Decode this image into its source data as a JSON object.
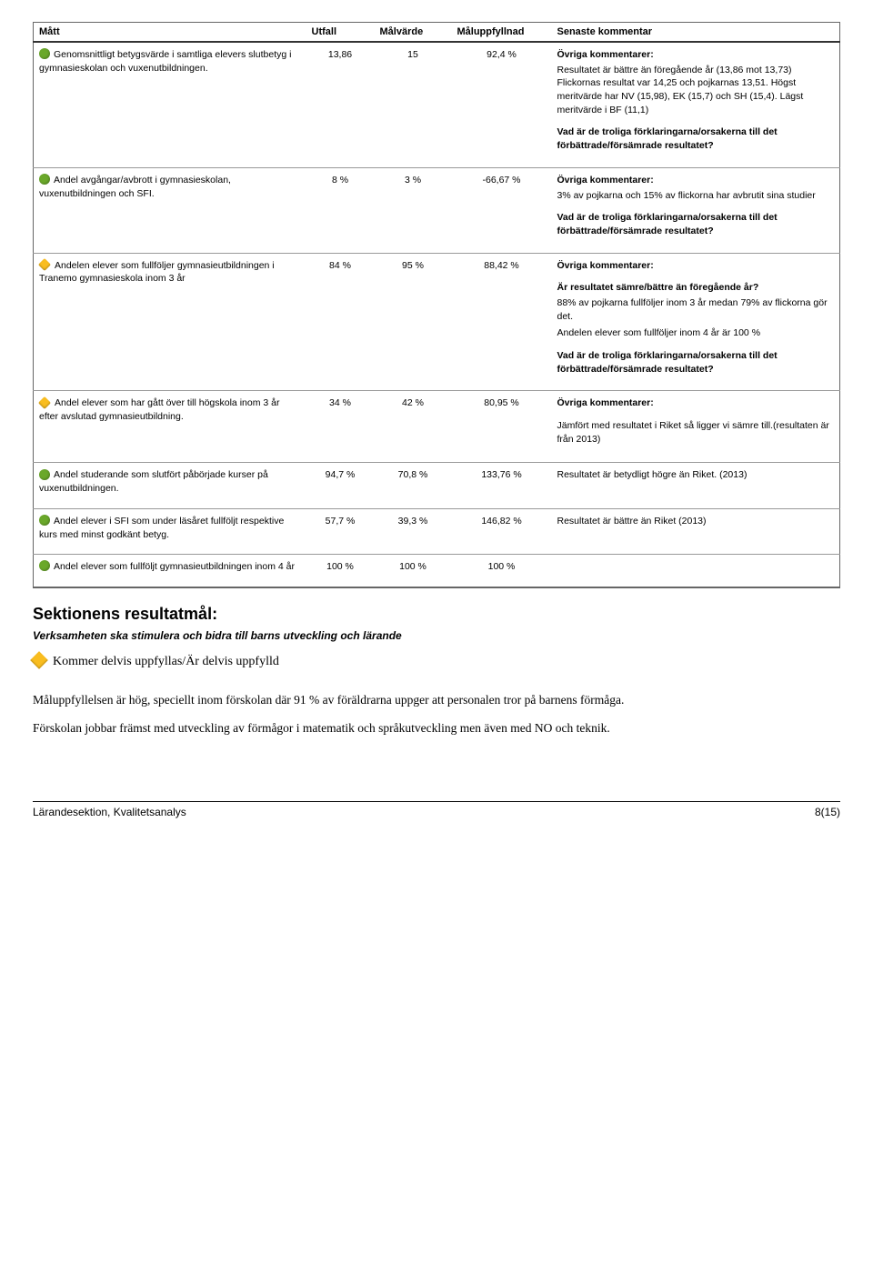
{
  "table": {
    "headers": [
      "Mått",
      "Utfall",
      "Målvärde",
      "Måluppfyllnad",
      "Senaste kommentar"
    ],
    "ovriga_label": "Övriga kommentarer:",
    "vad_label": "Vad är de troliga förklaringarna/orsakerna till det förbättrade/försämrade resultatet?",
    "ar_label": "Är resultatet sämre/bättre än föregående år?",
    "colors": {
      "green": "#6aa82a",
      "yellow": "#f9bd1f"
    },
    "rows": [
      {
        "indicator_color": "#6aa82a",
        "indicator_shape": "circle",
        "matt": "Genomsnittligt betygsvärde i samtliga elevers slutbetyg i gymnasieskolan och vuxenutbildningen.",
        "utfall": "13,86",
        "malvarde": "15",
        "maluppfyllnad": "92,4 %",
        "comment_blocks": [
          {
            "heading_key": "ovriga_label",
            "body": "Resultatet är bättre än föregående år (13,86 mot 13,73) Flickornas resultat var 14,25 och pojkarnas 13,51. Högst meritvärde har NV (15,98), EK (15,7) och SH (15,4). Lägst meritvärde i BF (11,1)"
          },
          {
            "heading_key": "vad_label",
            "body": ""
          }
        ]
      },
      {
        "indicator_color": "#6aa82a",
        "indicator_shape": "circle",
        "matt": "Andel avgångar/avbrott i gymnasieskolan, vuxenutbildningen och SFI.",
        "utfall": "8 %",
        "malvarde": "3 %",
        "maluppfyllnad": "-66,67 %",
        "comment_blocks": [
          {
            "heading_key": "ovriga_label",
            "body": "3% av pojkarna och 15% av flickorna har avbrutit sina studier"
          },
          {
            "heading_key": "vad_label",
            "body": ""
          }
        ]
      },
      {
        "indicator_color": "#f9bd1f",
        "indicator_shape": "diamond",
        "matt": "Andelen elever som fullföljer gymnasieutbildningen i Tranemo gymnasieskola inom 3 år",
        "utfall": "84 %",
        "malvarde": "95 %",
        "maluppfyllnad": "88,42 %",
        "comment_blocks": [
          {
            "heading_key": "ovriga_label",
            "body": ""
          },
          {
            "heading_key": "ar_label",
            "body": "88% av pojkarna fullföljer inom 3 år medan 79% av flickorna gör det.\nAndelen elever som fullföljer inom 4 år är 100 %"
          },
          {
            "heading_key": "vad_label",
            "body": ""
          }
        ]
      },
      {
        "indicator_color": "#f9bd1f",
        "indicator_shape": "diamond",
        "matt": "Andel elever som har gått över till högskola inom 3 år efter avslutad gymnasieutbildning.",
        "utfall": "34 %",
        "malvarde": "42 %",
        "maluppfyllnad": "80,95 %",
        "comment_blocks": [
          {
            "heading_key": "ovriga_label",
            "body": ""
          },
          {
            "heading_literal": "",
            "body": "Jämfört med resultatet i Riket så ligger vi sämre till.(resultaten är från 2013)"
          }
        ]
      },
      {
        "indicator_color": "#6aa82a",
        "indicator_shape": "circle",
        "matt": "Andel studerande som slutfört påbörjade kurser på vuxenutbildningen.",
        "utfall": "94,7 %",
        "malvarde": "70,8 %",
        "maluppfyllnad": "133,76 %",
        "comment_blocks": [
          {
            "heading_literal": "",
            "body": "Resultatet är betydligt högre än Riket. (2013)"
          }
        ]
      },
      {
        "indicator_color": "#6aa82a",
        "indicator_shape": "circle",
        "matt": "Andel elever i SFI som under läsåret fullföljt respektive kurs med minst godkänt betyg.",
        "utfall": "57,7 %",
        "malvarde": "39,3 %",
        "maluppfyllnad": "146,82 %",
        "comment_blocks": [
          {
            "heading_literal": "",
            "body": "Resultatet är bättre än Riket (2013)"
          }
        ]
      },
      {
        "indicator_color": "#6aa82a",
        "indicator_shape": "circle",
        "matt": "Andel elever som fullföljt gymnasieutbildningen inom 4 år",
        "utfall": "100 %",
        "malvarde": "100 %",
        "maluppfyllnad": "100 %",
        "comment_blocks": []
      }
    ]
  },
  "section": {
    "title": "Sektionens resultatmål:",
    "subtitle": "Verksamheten ska stimulera och bidra till barns utveckling och lärande",
    "status_text": "Kommer delvis uppfyllas/Är delvis uppfylld",
    "p1": "Måluppfyllelsen är hög, speciellt inom förskolan där 91 % av föräldrarna uppger att personalen tror på barnens förmåga.",
    "p2": "Förskolan jobbar främst med utveckling av förmågor i matematik och språkutveckling men även med NO och teknik."
  },
  "footer": {
    "left": "Lärandesektion, Kvalitetsanalys",
    "right": "8(15)"
  }
}
